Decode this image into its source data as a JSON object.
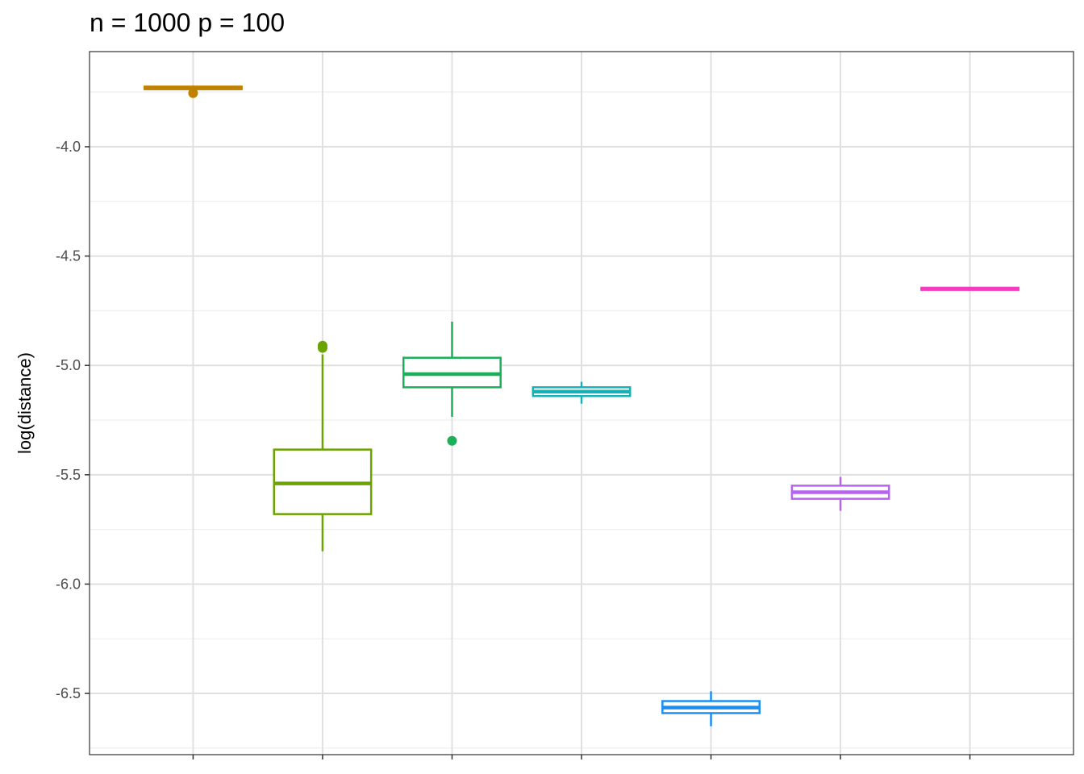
{
  "chart_data": {
    "type": "boxplot",
    "title": "n = 1000 p = 100",
    "xlabel": "",
    "ylabel": "log(distance)",
    "ylim": [
      -6.78,
      -3.565
    ],
    "yticks": [
      -4.0,
      -4.5,
      -5.0,
      -5.5,
      -6.0,
      -6.5
    ],
    "ytick_labels": [
      "-4.0",
      "-4.5",
      "-5.0",
      "-5.5",
      "-6.0",
      "-6.5"
    ],
    "grid": true,
    "legend": "none",
    "categories": [
      "",
      "",
      "",
      "",
      "",
      "",
      ""
    ],
    "boxes": [
      {
        "color": "#C08000",
        "q1": -3.737,
        "median": -3.73,
        "q3": -3.725,
        "whisker_low": -3.738,
        "whisker_high": -3.72,
        "outliers": [
          -3.755
        ]
      },
      {
        "color": "#6BA300",
        "q1": -5.68,
        "median": -5.54,
        "q3": -5.385,
        "whisker_low": -5.85,
        "whisker_high": -4.95,
        "outliers": [
          -4.91,
          -4.92
        ]
      },
      {
        "color": "#1AB059",
        "q1": -5.1,
        "median": -5.04,
        "q3": -4.965,
        "whisker_low": -5.235,
        "whisker_high": -4.8,
        "outliers": [
          -5.345
        ]
      },
      {
        "color": "#13B2B8",
        "q1": -5.14,
        "median": -5.12,
        "q3": -5.1,
        "whisker_low": -5.175,
        "whisker_high": -5.075,
        "outliers": []
      },
      {
        "color": "#1A8FF2",
        "q1": -6.59,
        "median": -6.565,
        "q3": -6.535,
        "whisker_low": -6.65,
        "whisker_high": -6.49,
        "outliers": []
      },
      {
        "color": "#B763F2",
        "q1": -5.61,
        "median": -5.58,
        "q3": -5.55,
        "whisker_low": -5.665,
        "whisker_high": -5.51,
        "outliers": []
      },
      {
        "color": "#F23DC1",
        "q1": -4.655,
        "median": -4.65,
        "q3": -4.645,
        "whisker_low": -4.655,
        "whisker_high": -4.645,
        "outliers": []
      }
    ]
  }
}
